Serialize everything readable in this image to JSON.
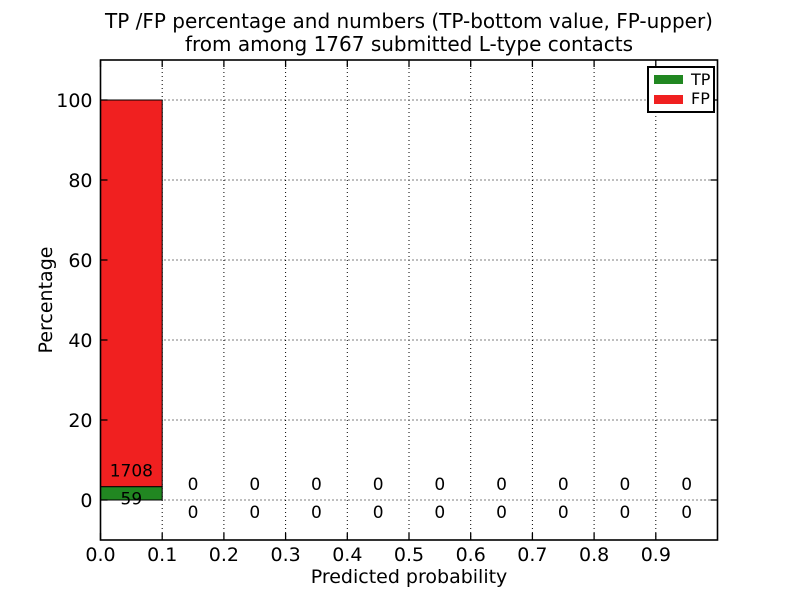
{
  "figure": {
    "title_line1": "TP /FP percentage and numbers (TP-bottom value, FP-upper)",
    "title_line2": "from among 1767 submitted L-type contacts",
    "background": "#ffffff"
  },
  "chart_data": {
    "type": "bar",
    "stacked": true,
    "title": "TP /FP percentage and numbers (TP-bottom value, FP-upper) from among 1767 submitted L-type contacts",
    "xlabel": "Predicted probability",
    "ylabel": "Percentage",
    "total_submitted": 1767,
    "contact_type": "L-type",
    "xlim": [
      0.0,
      1.0
    ],
    "ylim": [
      -10,
      110
    ],
    "x_tick_values": [
      0.0,
      0.1,
      0.2,
      0.3,
      0.4,
      0.5,
      0.6,
      0.7,
      0.8,
      0.9
    ],
    "x_tick_labels": [
      "0.0",
      "0.1",
      "0.2",
      "0.3",
      "0.4",
      "0.5",
      "0.6",
      "0.7",
      "0.8",
      "0.9"
    ],
    "y_tick_values": [
      0,
      20,
      40,
      60,
      80,
      100
    ],
    "y_tick_labels": [
      "0",
      "20",
      "40",
      "60",
      "80",
      "100"
    ],
    "grid": "dotted",
    "legend_position": "upper right",
    "series": [
      {
        "name": "TP",
        "color": "#218721"
      },
      {
        "name": "FP",
        "color": "#f02020"
      }
    ],
    "bins": [
      {
        "range": [
          0.0,
          0.1
        ],
        "tp_count": 59,
        "fp_count": 1708,
        "tp_pct": 3.339,
        "fp_pct": 96.661
      },
      {
        "range": [
          0.1,
          0.2
        ],
        "tp_count": 0,
        "fp_count": 0,
        "tp_pct": 0,
        "fp_pct": 0
      },
      {
        "range": [
          0.2,
          0.3
        ],
        "tp_count": 0,
        "fp_count": 0,
        "tp_pct": 0,
        "fp_pct": 0
      },
      {
        "range": [
          0.3,
          0.4
        ],
        "tp_count": 0,
        "fp_count": 0,
        "tp_pct": 0,
        "fp_pct": 0
      },
      {
        "range": [
          0.4,
          0.5
        ],
        "tp_count": 0,
        "fp_count": 0,
        "tp_pct": 0,
        "fp_pct": 0
      },
      {
        "range": [
          0.5,
          0.6
        ],
        "tp_count": 0,
        "fp_count": 0,
        "tp_pct": 0,
        "fp_pct": 0
      },
      {
        "range": [
          0.6,
          0.7
        ],
        "tp_count": 0,
        "fp_count": 0,
        "tp_pct": 0,
        "fp_pct": 0
      },
      {
        "range": [
          0.7,
          0.8
        ],
        "tp_count": 0,
        "fp_count": 0,
        "tp_pct": 0,
        "fp_pct": 0
      },
      {
        "range": [
          0.8,
          0.9
        ],
        "tp_count": 0,
        "fp_count": 0,
        "tp_pct": 0,
        "fp_pct": 0
      },
      {
        "range": [
          0.9,
          1.0
        ],
        "tp_count": 0,
        "fp_count": 0,
        "tp_pct": 0,
        "fp_pct": 0
      }
    ]
  }
}
